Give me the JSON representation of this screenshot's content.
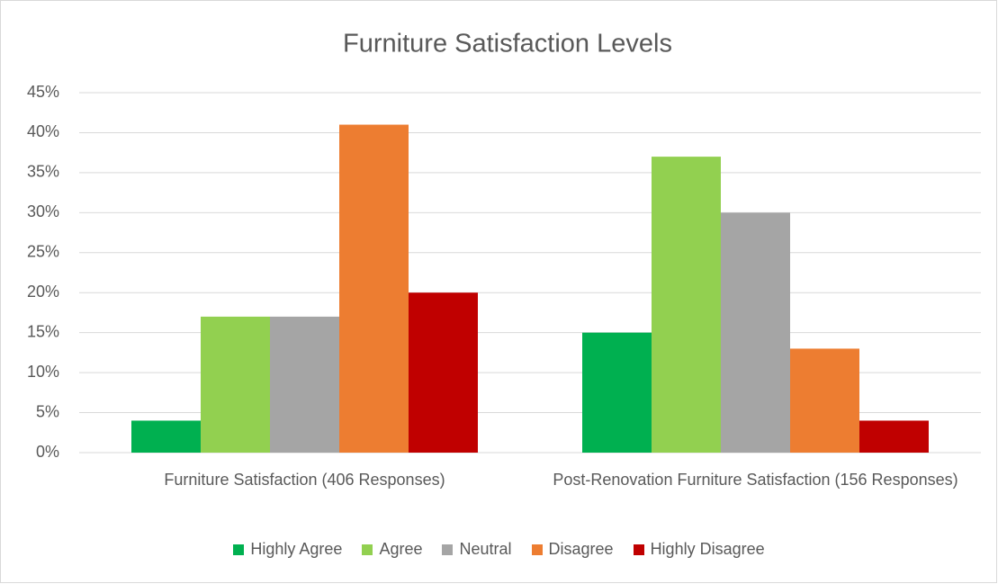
{
  "chart_data": {
    "type": "bar",
    "title": "Furniture Satisfaction Levels",
    "categories": [
      "Furniture Satisfaction (406 Responses)",
      "Post-Renovation Furniture Satisfaction (156 Responses)"
    ],
    "series": [
      {
        "name": "Highly Agree",
        "color": "#00b050",
        "values": [
          4,
          15
        ]
      },
      {
        "name": "Agree",
        "color": "#92d050",
        "values": [
          17,
          37
        ]
      },
      {
        "name": "Neutral",
        "color": "#a5a5a5",
        "values": [
          17,
          30
        ]
      },
      {
        "name": "Disagree",
        "color": "#ed7d31",
        "values": [
          41,
          13
        ]
      },
      {
        "name": "Highly Disagree",
        "color": "#c00000",
        "values": [
          20,
          4
        ]
      }
    ],
    "ylim": [
      0,
      45
    ],
    "yticks": [
      {
        "value": 0,
        "label": "0%"
      },
      {
        "value": 5,
        "label": "5%"
      },
      {
        "value": 10,
        "label": "10%"
      },
      {
        "value": 15,
        "label": "15%"
      },
      {
        "value": 20,
        "label": "20%"
      },
      {
        "value": 25,
        "label": "25%"
      },
      {
        "value": 30,
        "label": "30%"
      },
      {
        "value": 35,
        "label": "35%"
      },
      {
        "value": 40,
        "label": "40%"
      },
      {
        "value": 45,
        "label": "45%"
      }
    ],
    "grid": true,
    "legend": "bottom"
  }
}
